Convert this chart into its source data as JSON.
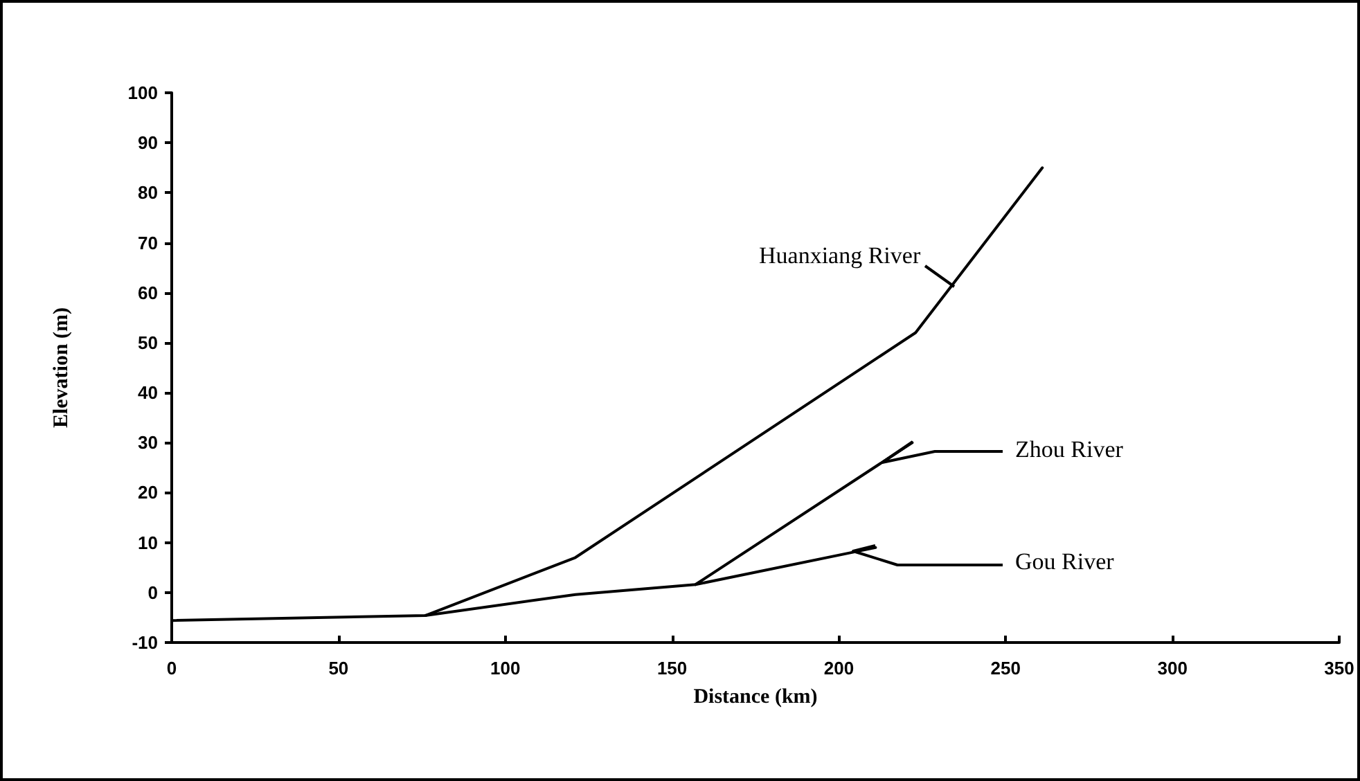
{
  "chart_data": {
    "type": "line",
    "xlabel": "Distance (km)",
    "ylabel": "Elevation (m)",
    "xlim": [
      0,
      350
    ],
    "xticks": [
      0,
      50,
      100,
      150,
      200,
      250,
      300,
      350
    ],
    "ylim": [
      -10,
      100
    ],
    "yticks": [
      -10,
      0,
      10,
      20,
      30,
      40,
      50,
      60,
      70,
      80,
      90,
      100
    ],
    "grid": false,
    "legend": false,
    "marker": "none",
    "line_style": "solid",
    "series": [
      {
        "name": "Huanxiang River",
        "color": "#000000",
        "x": [
          76,
          121,
          223,
          261
        ],
        "values": [
          -4.6,
          7,
          52,
          85
        ]
      },
      {
        "name": "Zhou River",
        "color": "#000000",
        "x": [
          157,
          222
        ],
        "values": [
          1.6,
          30
        ]
      },
      {
        "name": "Gou River",
        "color": "#000000",
        "x": [
          0,
          76,
          121,
          157,
          211
        ],
        "values": [
          -5.6,
          -4.6,
          -0.4,
          1.6,
          9
        ]
      }
    ]
  }
}
